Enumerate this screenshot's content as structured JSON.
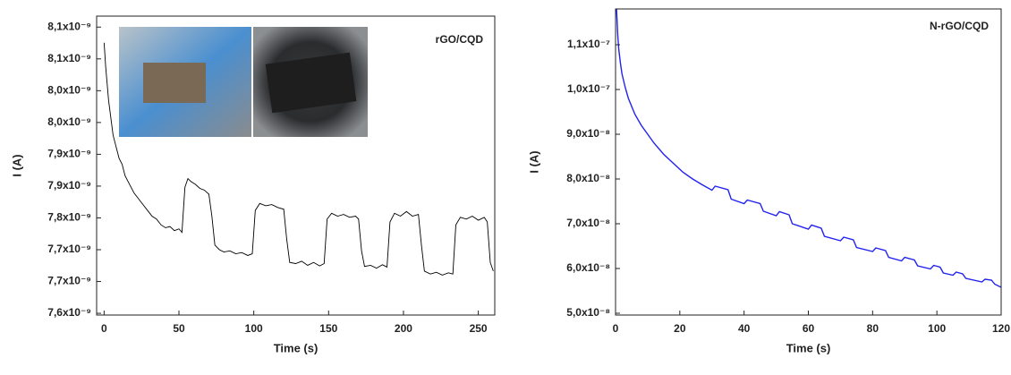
{
  "chart_data": [
    {
      "type": "line",
      "annotation": "rGO/CQD",
      "x_label": "Time (s)",
      "y_label": "I (A)",
      "xlim": [
        -5,
        261
      ],
      "xticks": [
        0,
        50,
        100,
        150,
        200,
        250
      ],
      "ylim": [
        7.629e-09,
        8.146e-09
      ],
      "yticks": [
        {
          "value": 7.632e-09,
          "label": "7,6x10⁻⁹"
        },
        {
          "value": 7.687e-09,
          "label": "7,7x10⁻⁹"
        },
        {
          "value": 7.742e-09,
          "label": "7,7x10⁻⁹"
        },
        {
          "value": 7.797e-09,
          "label": "7,8x10⁻⁹"
        },
        {
          "value": 7.852e-09,
          "label": "7,9x10⁻⁹"
        },
        {
          "value": 7.907e-09,
          "label": "7,9x10⁻⁹"
        },
        {
          "value": 7.962e-09,
          "label": "8,0x10⁻⁹"
        },
        {
          "value": 8.017e-09,
          "label": "8,0x10⁻⁹"
        },
        {
          "value": 8.072e-09,
          "label": "8,1x10⁻⁹"
        },
        {
          "value": 8.127e-09,
          "label": "8,1x10⁻⁹"
        }
      ],
      "x": [
        0,
        1,
        2,
        3,
        4,
        5,
        6,
        8,
        10,
        12,
        14,
        16,
        18,
        20,
        23,
        26,
        29,
        32,
        35,
        38,
        41,
        44,
        47,
        50,
        52,
        54,
        56,
        58,
        61,
        64,
        67,
        70,
        72,
        74,
        77,
        80,
        84,
        88,
        92,
        96,
        99,
        101,
        104,
        108,
        112,
        116,
        120,
        122,
        124,
        128,
        132,
        136,
        140,
        144,
        147,
        149,
        152,
        156,
        160,
        164,
        168,
        170,
        172,
        174,
        178,
        182,
        186,
        189,
        191,
        194,
        198,
        202,
        206,
        210,
        212,
        214,
        218,
        222,
        226,
        230,
        233,
        235,
        238,
        242,
        246,
        250,
        254,
        256,
        258,
        260
      ],
      "series": [
        {
          "color": "#000000",
          "values": [
            8.1e-09,
            8.06e-09,
            8.03e-09,
            8e-09,
            7.98e-09,
            7.96e-09,
            7.94e-09,
            7.92e-09,
            7.9e-09,
            7.89e-09,
            7.87e-09,
            7.86e-09,
            7.85e-09,
            7.84e-09,
            7.83e-09,
            7.82e-09,
            7.81e-09,
            7.8e-09,
            7.795e-09,
            7.785e-09,
            7.78e-09,
            7.782e-09,
            7.775e-09,
            7.778e-09,
            7.772e-09,
            7.85e-09,
            7.865e-09,
            7.86e-09,
            7.855e-09,
            7.848e-09,
            7.845e-09,
            7.838e-09,
            7.8e-09,
            7.75e-09,
            7.742e-09,
            7.738e-09,
            7.74e-09,
            7.735e-09,
            7.737e-09,
            7.732e-09,
            7.735e-09,
            7.81e-09,
            7.822e-09,
            7.818e-09,
            7.82e-09,
            7.815e-09,
            7.812e-09,
            7.76e-09,
            7.72e-09,
            7.718e-09,
            7.722e-09,
            7.715e-09,
            7.72e-09,
            7.714e-09,
            7.718e-09,
            7.795e-09,
            7.805e-09,
            7.8e-09,
            7.803e-09,
            7.798e-09,
            7.8e-09,
            7.795e-09,
            7.74e-09,
            7.713e-09,
            7.715e-09,
            7.71e-09,
            7.716e-09,
            7.712e-09,
            7.79e-09,
            7.805e-09,
            7.8e-09,
            7.808e-09,
            7.8e-09,
            7.803e-09,
            7.75e-09,
            7.705e-09,
            7.7e-09,
            7.703e-09,
            7.698e-09,
            7.702e-09,
            7.7e-09,
            7.785e-09,
            7.798e-09,
            7.795e-09,
            7.8e-09,
            7.793e-09,
            7.798e-09,
            7.79e-09,
            7.72e-09,
            7.705e-09
          ]
        }
      ]
    },
    {
      "type": "line",
      "annotation": "N-rGO/CQD",
      "x_label": "Time (s)",
      "y_label": "I (A)",
      "xlim": [
        0,
        120
      ],
      "xticks": [
        0,
        20,
        40,
        60,
        80,
        100,
        120
      ],
      "ylim": [
        4.96e-08,
        1.18e-07
      ],
      "yticks": [
        {
          "value": 5e-08,
          "label": "5,0x10⁻⁸"
        },
        {
          "value": 6e-08,
          "label": "6,0x10⁻⁸"
        },
        {
          "value": 7e-08,
          "label": "7,0x10⁻⁸"
        },
        {
          "value": 8e-08,
          "label": "8,0x10⁻⁸"
        },
        {
          "value": 9e-08,
          "label": "9,0x10⁻⁸"
        },
        {
          "value": 1e-07,
          "label": "1,0x10⁻⁷"
        },
        {
          "value": 1.1e-07,
          "label": "1,1x10⁻⁷"
        }
      ],
      "x": [
        0.3,
        0.7,
        1,
        1.5,
        2,
        3,
        4,
        6,
        8,
        10,
        12,
        15,
        18,
        21,
        24,
        27,
        30,
        31,
        35,
        36,
        40,
        41,
        45,
        46,
        50,
        51,
        54,
        55,
        60,
        61,
        64,
        65,
        70,
        71,
        74,
        75,
        80,
        81,
        84,
        85,
        89,
        90,
        93,
        94,
        98,
        99,
        101,
        102,
        105,
        106,
        108,
        109,
        114,
        115,
        117,
        118,
        120
      ],
      "series": [
        {
          "color": "#2222ee",
          "values": [
            1.18e-07,
            1.12e-07,
            1.09e-07,
            1.06e-07,
            1.035e-07,
            1.005e-07,
            9.8e-08,
            9.45e-08,
            9.2e-08,
            9e-08,
            8.8e-08,
            8.55e-08,
            8.35e-08,
            8.15e-08,
            8e-08,
            7.87e-08,
            7.75e-08,
            7.84e-08,
            7.76e-08,
            7.55e-08,
            7.45e-08,
            7.53e-08,
            7.45e-08,
            7.28e-08,
            7.18e-08,
            7.27e-08,
            7.2e-08,
            7e-08,
            6.88e-08,
            6.97e-08,
            6.9e-08,
            6.72e-08,
            6.62e-08,
            6.7e-08,
            6.64e-08,
            6.47e-08,
            6.38e-08,
            6.46e-08,
            6.4e-08,
            6.25e-08,
            6.17e-08,
            6.25e-08,
            6.19e-08,
            6.06e-08,
            5.99e-08,
            6.07e-08,
            6.03e-08,
            5.9e-08,
            5.85e-08,
            5.92e-08,
            5.88e-08,
            5.78e-08,
            5.7e-08,
            5.76e-08,
            5.74e-08,
            5.65e-08,
            5.58e-08
          ]
        }
      ]
    }
  ]
}
